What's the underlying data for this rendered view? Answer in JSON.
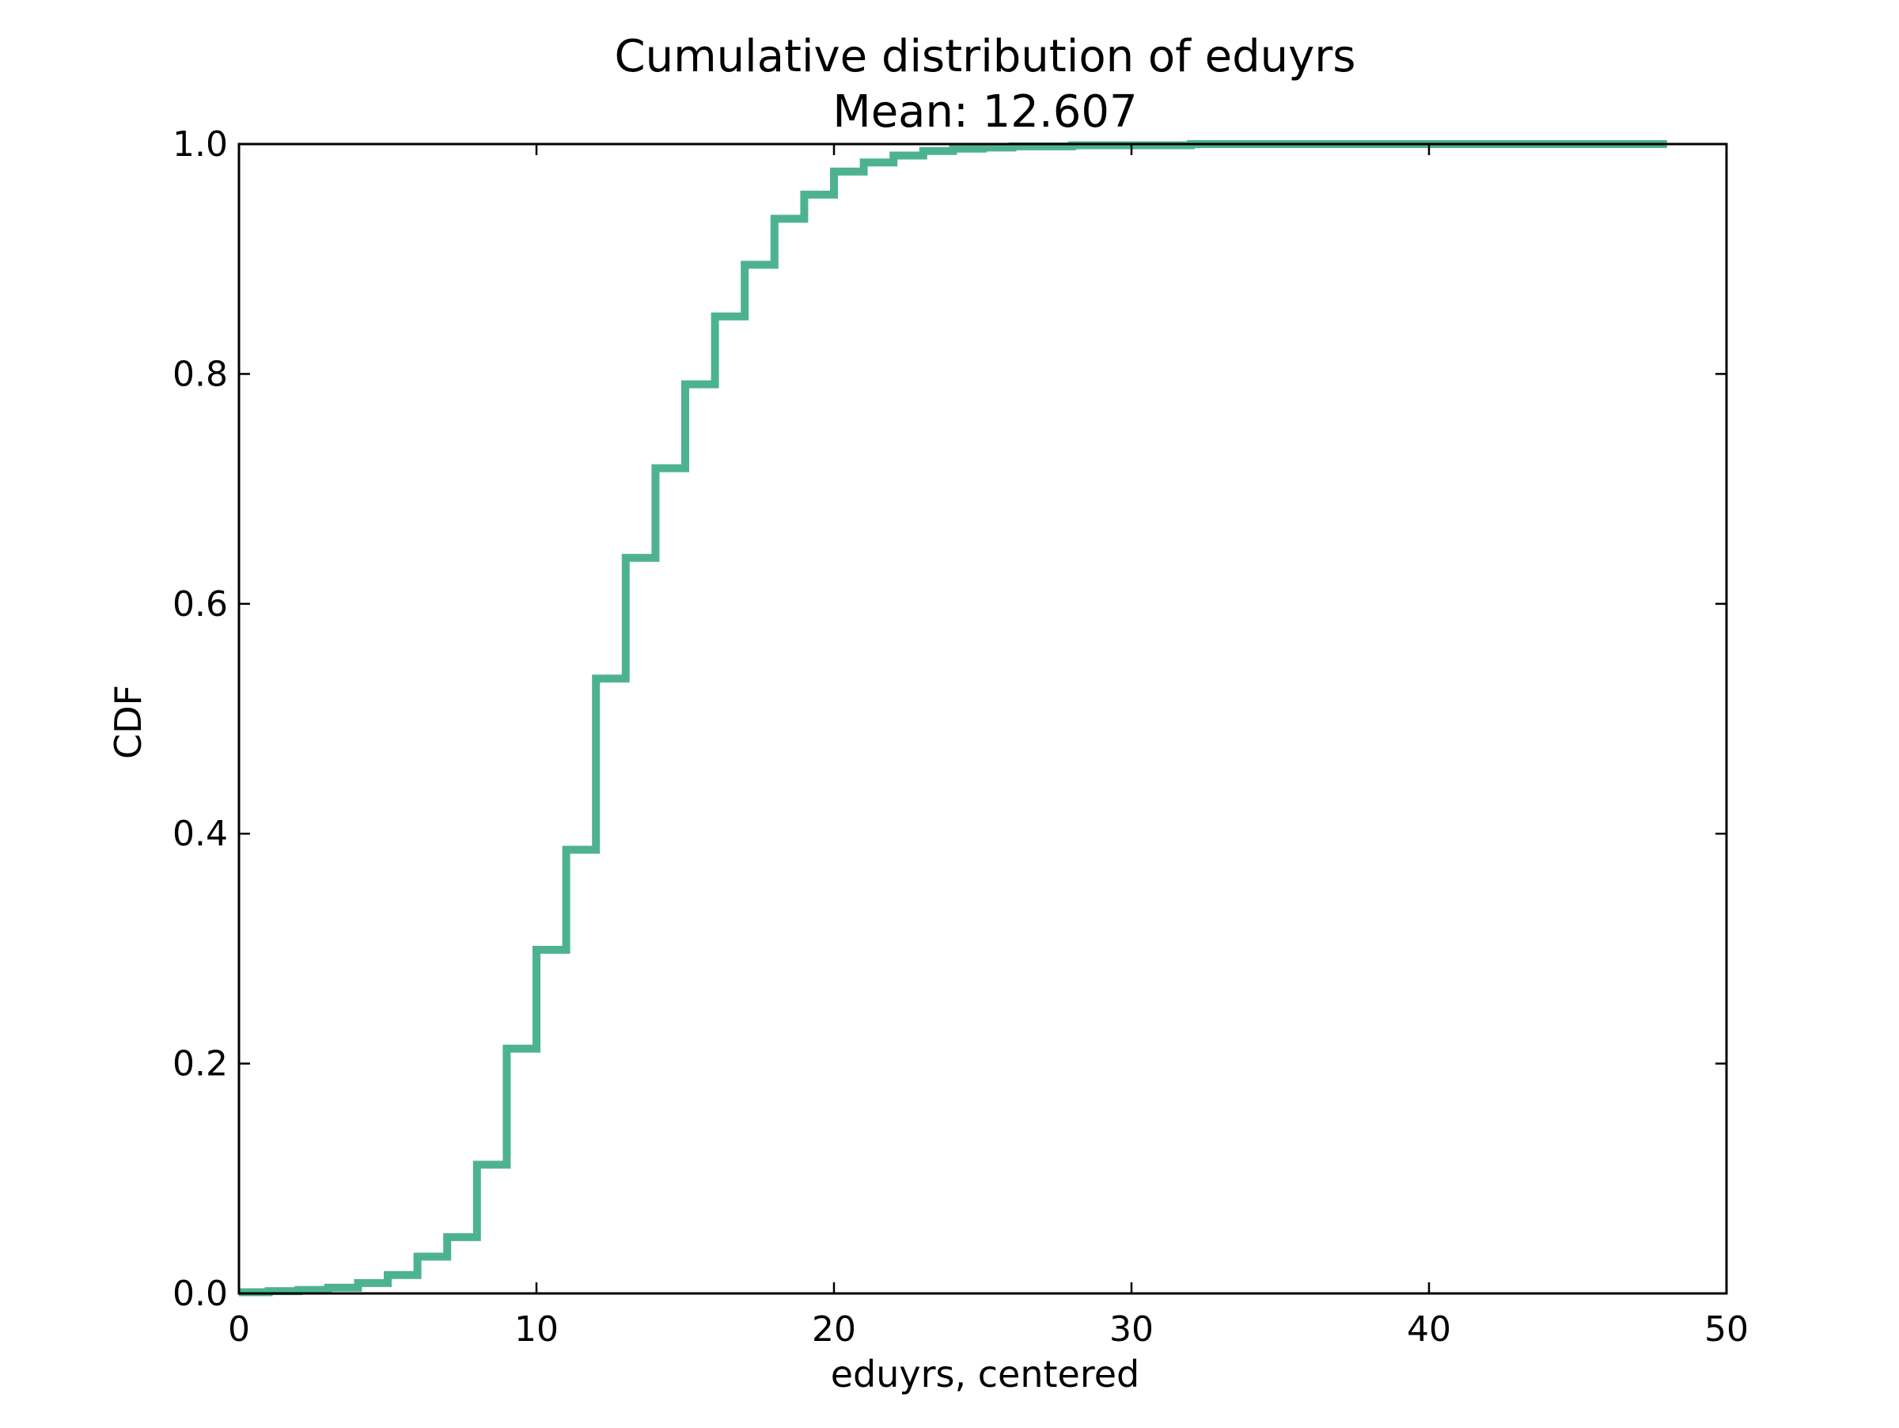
{
  "chart_data": {
    "type": "line",
    "title": "Cumulative distribution of eduyrs",
    "subtitle": "Mean: 12.607",
    "xlabel": "eduyrs, centered",
    "ylabel": "CDF",
    "xlim": [
      0,
      50
    ],
    "ylim": [
      0,
      1
    ],
    "x_ticks": [
      "0",
      "10",
      "20",
      "30",
      "40",
      "50"
    ],
    "y_ticks": [
      "0.0",
      "0.2",
      "0.4",
      "0.6",
      "0.8",
      "1.0"
    ],
    "grid": false,
    "legend": "none",
    "line_color": "#4db38e",
    "step": true,
    "series": [
      {
        "x": [
          0,
          1,
          2,
          3,
          4,
          5,
          6,
          7,
          8,
          9,
          10,
          11,
          12,
          13,
          14,
          15,
          16,
          17,
          18,
          19,
          20,
          21,
          22,
          23,
          24,
          25,
          26,
          27,
          28,
          29,
          30,
          31,
          32,
          33,
          34,
          35,
          36,
          37,
          38,
          39,
          40,
          41,
          42,
          43,
          44,
          45,
          46,
          47,
          48
        ],
        "y": [
          0.001,
          0.002,
          0.003,
          0.005,
          0.009,
          0.016,
          0.032,
          0.049,
          0.112,
          0.213,
          0.299,
          0.386,
          0.535,
          0.64,
          0.718,
          0.791,
          0.85,
          0.895,
          0.935,
          0.956,
          0.976,
          0.984,
          0.99,
          0.994,
          0.996,
          0.997,
          0.998,
          0.998,
          0.999,
          0.999,
          0.999,
          0.999,
          1.0,
          1.0,
          1.0,
          1.0,
          1.0,
          1.0,
          1.0,
          1.0,
          1.0,
          1.0,
          1.0,
          1.0,
          1.0,
          1.0,
          1.0,
          1.0,
          1.0
        ]
      }
    ]
  }
}
